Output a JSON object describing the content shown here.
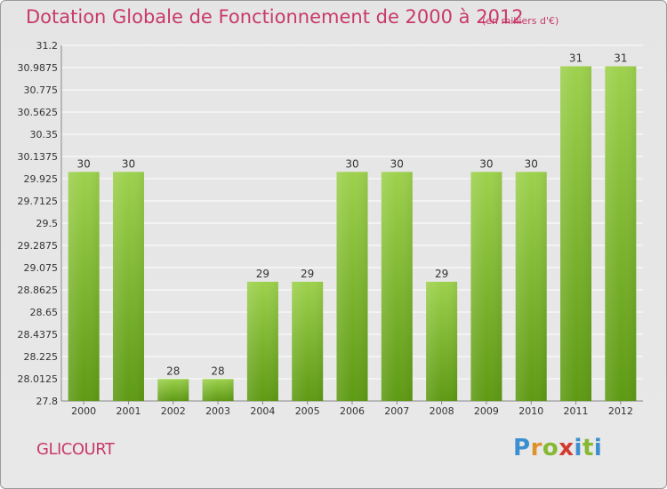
{
  "header": {
    "title": "Dotation Globale de Fonctionnement de 2000 à 2012",
    "unit": "(en milliers d'€)"
  },
  "footer": {
    "commune": "GLICOURT",
    "logo_letters": [
      "P",
      "r",
      "o",
      "x",
      "i",
      "t",
      "i"
    ]
  },
  "colors": {
    "title": "#c8396b",
    "bar_top": "#9dd14d",
    "bar_bottom": "#5e9a14",
    "grid": "#ffffff",
    "background": "#e6e6e6"
  },
  "chart_data": {
    "type": "bar",
    "categories": [
      "2000",
      "2001",
      "2002",
      "2003",
      "2004",
      "2005",
      "2006",
      "2007",
      "2008",
      "2009",
      "2010",
      "2011",
      "2012"
    ],
    "values": [
      30,
      30,
      28,
      28,
      29,
      29,
      30,
      30,
      29,
      30,
      30,
      31,
      31
    ],
    "bar_heights": [
      29.99,
      29.99,
      28.01,
      28.01,
      28.94,
      28.94,
      29.99,
      29.99,
      28.94,
      29.99,
      29.99,
      31.0,
      31.0
    ],
    "data_labels": [
      "30",
      "30",
      "28",
      "28",
      "29",
      "29",
      "30",
      "30",
      "29",
      "30",
      "30",
      "31",
      "31"
    ],
    "y_ticks": [
      "27.8",
      "28.0125",
      "28.225",
      "28.4375",
      "28.65",
      "28.8625",
      "29.075",
      "29.2875",
      "29.5",
      "29.7125",
      "29.925",
      "30.1375",
      "30.35",
      "30.5625",
      "30.775",
      "30.9875",
      "31.2"
    ],
    "ylim": [
      27.8,
      31.2
    ],
    "grid": true,
    "title": "Dotation Globale de Fonctionnement de 2000 à 2012",
    "xlabel": "",
    "ylabel": ""
  }
}
